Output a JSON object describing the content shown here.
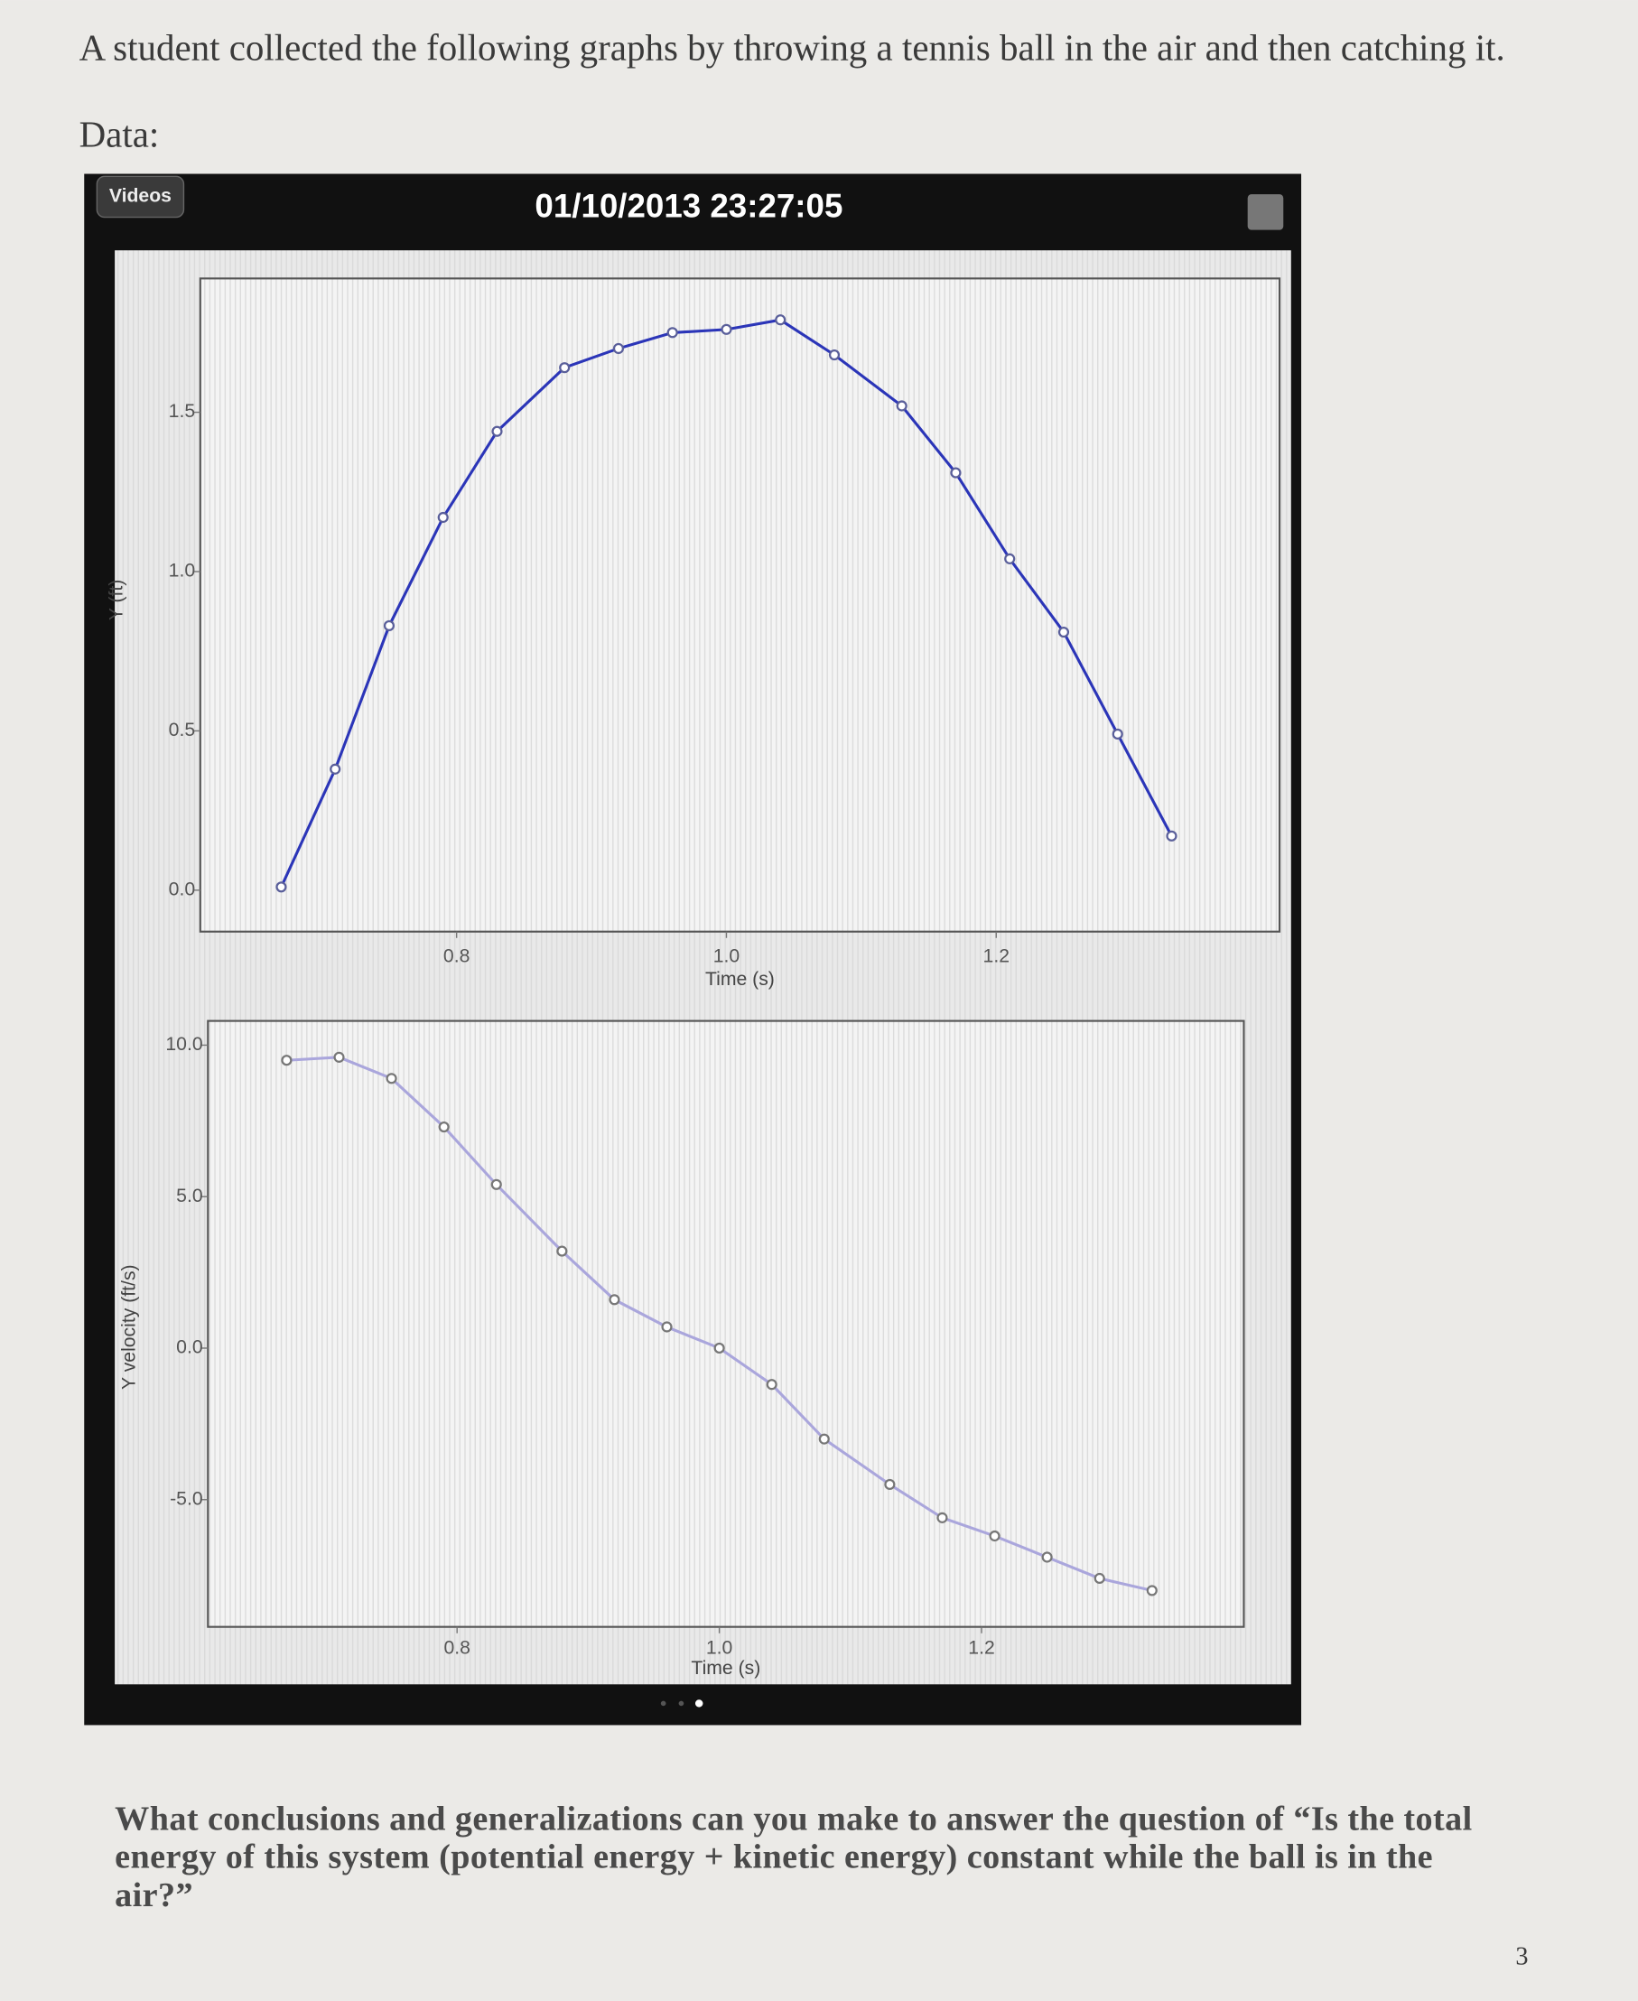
{
  "intro": "A student collected the following graphs by throwing a tennis ball in the air and then catching it.",
  "data_label": "Data:",
  "app": {
    "back_button": "Videos",
    "timestamp": "01/10/2013 23:27:05"
  },
  "chart_data": [
    {
      "type": "line",
      "ylabel": "Y (ft)",
      "xlabel": "Time (s)",
      "color": "#2b35b8",
      "marker_color": "#5a5f9a",
      "x": [
        0.67,
        0.71,
        0.75,
        0.79,
        0.83,
        0.88,
        0.92,
        0.96,
        1.0,
        1.04,
        1.08,
        1.13,
        1.17,
        1.21,
        1.25,
        1.29,
        1.33
      ],
      "values": [
        0.01,
        0.38,
        0.83,
        1.17,
        1.44,
        1.64,
        1.7,
        1.75,
        1.76,
        1.79,
        1.68,
        1.52,
        1.31,
        1.04,
        0.81,
        0.49,
        0.17
      ],
      "xlim": [
        0.61,
        1.41
      ],
      "xticks": [
        0.8,
        {
          "value": 1,
          "label": "1.0"
        },
        1.2
      ],
      "ylim": [
        -0.13,
        1.92
      ],
      "yticks": [
        {
          "value": 0,
          "label": "0.0"
        },
        0.5,
        {
          "value": 1,
          "label": "1.0"
        },
        1.5
      ]
    },
    {
      "type": "line",
      "ylabel": "Y velocity (ft/s)",
      "xlabel": "Time (s)",
      "color": "#aaa6dc",
      "marker_color": "#777",
      "x": [
        0.67,
        0.71,
        0.75,
        0.79,
        0.83,
        0.88,
        0.92,
        0.96,
        1.0,
        1.04,
        1.08,
        1.13,
        1.17,
        1.21,
        1.25,
        1.29,
        1.33
      ],
      "values": [
        9.5,
        9.6,
        8.9,
        7.3,
        5.4,
        3.2,
        1.6,
        0.7,
        0.0,
        -1.2,
        -3.0,
        -4.5,
        -5.6,
        -6.2,
        -6.9,
        -7.6,
        -8.0
      ],
      "xlim": [
        0.61,
        1.4
      ],
      "xticks": [
        0.8,
        {
          "value": 1,
          "label": "1.0"
        },
        1.2
      ],
      "ylim": [
        -9.2,
        10.8
      ],
      "yticks": [
        {
          "value": 10,
          "label": "10.0"
        },
        {
          "value": 5,
          "label": "5.0"
        },
        {
          "value": 0,
          "label": "0.0"
        },
        {
          "value": -5,
          "label": "-5.0"
        }
      ]
    }
  ],
  "question": "What conclusions and generalizations can you make to answer the question of “Is the total energy of this system (potential energy + kinetic energy) constant while the ball is in the air?”",
  "page_number": "3"
}
